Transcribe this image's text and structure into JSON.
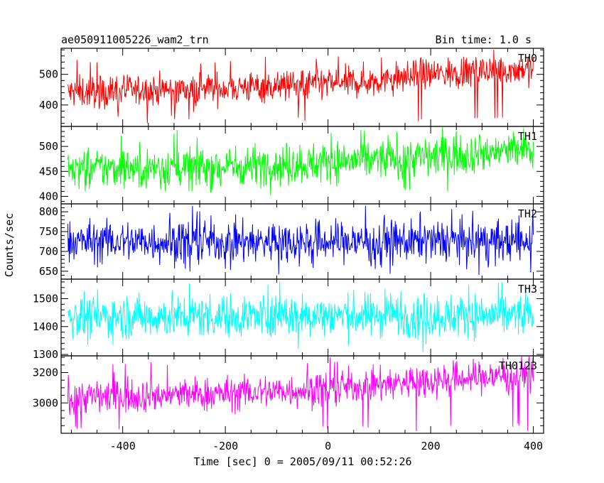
{
  "chart_data": {
    "type": "line",
    "title": "ae050911005226_wam2_trn",
    "subtitle": "Bin time: 1.0 s",
    "xlabel": "Time [sec] 0 = 2005/09/11 00:52:26",
    "ylabel": "Counts/sec",
    "xlim": [
      -520,
      420
    ],
    "x_ticks": [
      -400,
      -200,
      0,
      200,
      400
    ],
    "x_range": [
      -507,
      400
    ],
    "grid": false,
    "panels": [
      {
        "name": "TH0",
        "color": "#ff0000",
        "ylim": [
          330,
          585
        ],
        "y_ticks": [
          400,
          500
        ],
        "trend": [
          [
            -507,
            440
          ],
          [
            -300,
            450
          ],
          [
            0,
            468
          ],
          [
            100,
            480
          ],
          [
            200,
            500
          ],
          [
            400,
            520
          ]
        ],
        "noise": 26,
        "spike_lo": 340,
        "spike_hi": 560
      },
      {
        "name": "TH1",
        "color": "#00ff00",
        "ylim": [
          385,
          540
        ],
        "y_ticks": [
          400,
          450,
          500
        ],
        "trend": [
          [
            -507,
            455
          ],
          [
            -200,
            460
          ],
          [
            0,
            468
          ],
          [
            200,
            480
          ],
          [
            400,
            495
          ]
        ],
        "noise": 20,
        "spike_lo": 405,
        "spike_hi": 535
      },
      {
        "name": "TH2",
        "color": "#0000ff",
        "ylim": [
          630,
          820
        ],
        "y_ticks": [
          650,
          700,
          750,
          800
        ],
        "trend": [
          [
            -507,
            725
          ],
          [
            400,
            725
          ]
        ],
        "noise": 26,
        "spike_lo": 640,
        "spike_hi": 815
      },
      {
        "name": "TH3",
        "color": "#00ffff",
        "ylim": [
          1295,
          1570
        ],
        "y_ticks": [
          1300,
          1400,
          1500
        ],
        "trend": [
          [
            -507,
            1435
          ],
          [
            0,
            1440
          ],
          [
            400,
            1440
          ]
        ],
        "noise": 38,
        "spike_lo": 1305,
        "spike_hi": 1565
      },
      {
        "name": "TH0123",
        "color": "#ff00ff",
        "ylim": [
          2800,
          3310
        ],
        "y_ticks": [
          3000,
          3200
        ],
        "trend": [
          [
            -507,
            3040
          ],
          [
            -200,
            3060
          ],
          [
            0,
            3095
          ],
          [
            200,
            3150
          ],
          [
            400,
            3190
          ]
        ],
        "noise": 55,
        "spike_lo": 2810,
        "spike_hi": 3300
      }
    ]
  }
}
